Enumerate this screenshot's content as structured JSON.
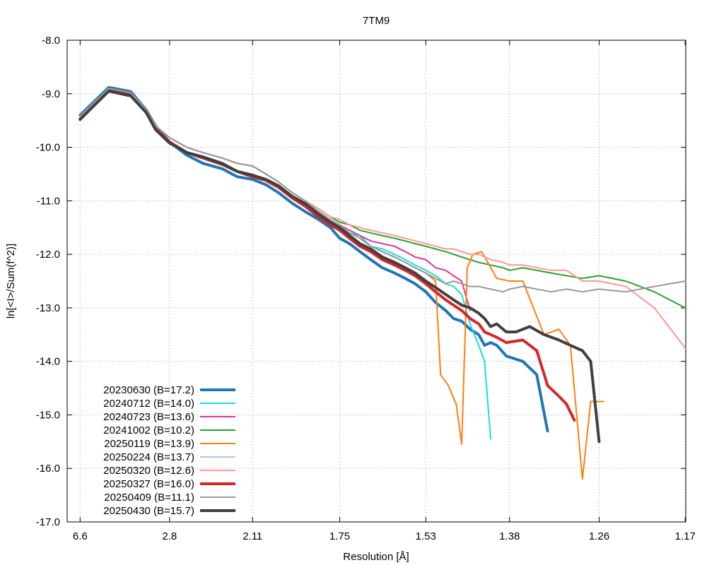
{
  "chart_data": {
    "type": "line",
    "title": "7TM9",
    "xlabel": "Resolution [Å]",
    "ylabel": "ln[<I>/Sum(f^2)]",
    "x_axis": "inverse-square resolution (1/d^2), tick labels show d in Å",
    "xlim_resolution": [
      6.6,
      1.17
    ],
    "ylim": [
      -17.0,
      -8.0
    ],
    "x_ticks": [
      "6.6",
      "2.8",
      "2.11",
      "1.75",
      "1.53",
      "1.38",
      "1.26",
      "1.17"
    ],
    "y_ticks": [
      "-8.0",
      "-9.0",
      "-10.0",
      "-11.0",
      "-12.0",
      "-13.0",
      "-14.0",
      "-15.0",
      "-16.0",
      "-17.0"
    ],
    "grid": true,
    "legend_position": "bottom-left",
    "series": [
      {
        "name": "20230630 (B=17.2)",
        "color": "#1f77b4",
        "width": "thick",
        "x": [
          6.6,
          4.21,
          3.49,
          3.16,
          3.0,
          2.8,
          2.6,
          2.45,
          2.3,
          2.2,
          2.11,
          2.04,
          1.98,
          1.92,
          1.87,
          1.82,
          1.78,
          1.75,
          1.72,
          1.69,
          1.66,
          1.63,
          1.6,
          1.575,
          1.553,
          1.53,
          1.51,
          1.49,
          1.475,
          1.46,
          1.445,
          1.43,
          1.42,
          1.41,
          1.4,
          1.385,
          1.36,
          1.34,
          1.325
        ],
        "y": [
          -9.4,
          -8.88,
          -8.96,
          -9.3,
          -9.6,
          -9.9,
          -10.15,
          -10.3,
          -10.4,
          -10.55,
          -10.6,
          -10.7,
          -10.85,
          -11.05,
          -11.2,
          -11.35,
          -11.5,
          -11.7,
          -11.8,
          -11.95,
          -12.1,
          -12.25,
          -12.35,
          -12.45,
          -12.55,
          -12.7,
          -12.9,
          -13.05,
          -13.2,
          -13.25,
          -13.4,
          -13.5,
          -13.7,
          -13.65,
          -13.7,
          -13.9,
          -14.0,
          -14.25,
          -15.3
        ]
      },
      {
        "name": "20240712 (B=14.0)",
        "color": "#17dfe0",
        "width": "thin",
        "x": [
          6.6,
          4.21,
          3.49,
          3.16,
          3.0,
          2.8,
          2.6,
          2.45,
          2.3,
          2.2,
          2.11,
          2.04,
          1.98,
          1.92,
          1.87,
          1.82,
          1.78,
          1.75,
          1.72,
          1.69,
          1.66,
          1.63,
          1.6,
          1.575,
          1.553,
          1.53,
          1.51,
          1.49,
          1.475,
          1.46,
          1.445,
          1.43,
          1.42,
          1.41
        ],
        "y": [
          -9.42,
          -8.9,
          -8.98,
          -9.3,
          -9.6,
          -9.82,
          -10.0,
          -10.1,
          -10.2,
          -10.3,
          -10.35,
          -10.5,
          -10.65,
          -10.85,
          -11.0,
          -11.2,
          -11.35,
          -11.45,
          -11.6,
          -11.65,
          -11.85,
          -11.9,
          -12.0,
          -12.1,
          -12.2,
          -12.3,
          -12.4,
          -12.55,
          -12.6,
          -12.75,
          -13.3,
          -13.7,
          -14.0,
          -15.45
        ]
      },
      {
        "name": "20240723 (B=13.6)",
        "color": "#e0349a",
        "width": "thin",
        "x": [
          6.6,
          4.21,
          3.49,
          3.16,
          3.0,
          2.8,
          2.6,
          2.45,
          2.3,
          2.2,
          2.11,
          2.04,
          1.98,
          1.92,
          1.87,
          1.82,
          1.78,
          1.75,
          1.72,
          1.69,
          1.66,
          1.63,
          1.6,
          1.575,
          1.553,
          1.53,
          1.51,
          1.49,
          1.475,
          1.46,
          1.445
        ],
        "y": [
          -9.42,
          -8.9,
          -8.98,
          -9.3,
          -9.6,
          -9.82,
          -10.0,
          -10.1,
          -10.2,
          -10.3,
          -10.35,
          -10.5,
          -10.65,
          -10.85,
          -11.0,
          -11.2,
          -11.35,
          -11.45,
          -11.55,
          -11.65,
          -11.75,
          -11.8,
          -11.85,
          -11.95,
          -12.05,
          -12.1,
          -12.25,
          -12.3,
          -12.4,
          -12.5,
          -13.05
        ]
      },
      {
        "name": "20241002 (B=10.2)",
        "color": "#2ca02c",
        "width": "thin",
        "x": [
          6.6,
          4.21,
          3.49,
          3.16,
          3.0,
          2.8,
          2.6,
          2.45,
          2.3,
          2.2,
          2.11,
          2.04,
          1.98,
          1.92,
          1.87,
          1.82,
          1.78,
          1.75,
          1.72,
          1.69,
          1.66,
          1.63,
          1.6,
          1.575,
          1.553,
          1.53,
          1.51,
          1.49,
          1.475,
          1.46,
          1.445,
          1.43,
          1.41,
          1.39,
          1.38,
          1.36,
          1.34,
          1.32,
          1.3,
          1.28,
          1.26,
          1.23,
          1.2,
          1.17
        ],
        "y": [
          -9.42,
          -8.9,
          -8.98,
          -9.3,
          -9.6,
          -9.82,
          -10.0,
          -10.1,
          -10.2,
          -10.3,
          -10.35,
          -10.5,
          -10.65,
          -10.85,
          -11.0,
          -11.15,
          -11.3,
          -11.4,
          -11.45,
          -11.55,
          -11.6,
          -11.65,
          -11.7,
          -11.75,
          -11.8,
          -11.85,
          -11.9,
          -11.95,
          -12.0,
          -12.05,
          -12.1,
          -12.15,
          -12.2,
          -12.25,
          -12.3,
          -12.25,
          -12.3,
          -12.35,
          -12.4,
          -12.45,
          -12.4,
          -12.5,
          -12.7,
          -13.0
        ]
      },
      {
        "name": "20250119 (B=13.9)",
        "color": "#ff7f0e",
        "width": "thin",
        "x": [
          6.6,
          4.21,
          3.49,
          3.16,
          3.0,
          2.8,
          2.6,
          2.45,
          2.3,
          2.2,
          2.11,
          2.04,
          1.98,
          1.92,
          1.87,
          1.82,
          1.78,
          1.75,
          1.72,
          1.69,
          1.66,
          1.63,
          1.6,
          1.575,
          1.553,
          1.53,
          1.51,
          1.5,
          1.485,
          1.47,
          1.46,
          1.45,
          1.44,
          1.425,
          1.4,
          1.38,
          1.36,
          1.33,
          1.31,
          1.295,
          1.28,
          1.27,
          1.255
        ],
        "y": [
          -9.42,
          -8.9,
          -8.98,
          -9.3,
          -9.6,
          -9.82,
          -10.0,
          -10.1,
          -10.2,
          -10.3,
          -10.35,
          -10.5,
          -10.65,
          -10.85,
          -11.0,
          -11.2,
          -11.35,
          -11.45,
          -11.6,
          -11.7,
          -11.85,
          -11.95,
          -12.05,
          -12.15,
          -12.25,
          -12.35,
          -12.5,
          -14.25,
          -14.45,
          -14.8,
          -15.55,
          -12.25,
          -12.0,
          -11.95,
          -12.45,
          -12.5,
          -12.5,
          -13.5,
          -13.4,
          -13.7,
          -16.2,
          -14.75,
          -14.75
        ]
      },
      {
        "name": "20250224 (B=13.7)",
        "color": "#aec7e8",
        "width": "thin",
        "x": [
          6.6,
          4.21,
          3.49,
          3.16,
          3.0,
          2.8,
          2.6,
          2.45,
          2.3,
          2.2,
          2.11,
          2.04,
          1.98,
          1.92,
          1.87,
          1.82,
          1.78,
          1.75,
          1.72,
          1.69,
          1.66,
          1.63,
          1.6,
          1.575,
          1.553,
          1.53,
          1.51
        ],
        "y": [
          -9.42,
          -8.9,
          -8.98,
          -9.3,
          -9.6,
          -9.82,
          -10.0,
          -10.1,
          -10.2,
          -10.3,
          -10.35,
          -10.5,
          -10.65,
          -10.85,
          -11.0,
          -11.2,
          -11.35,
          -11.45,
          -11.6,
          -11.7,
          -11.85,
          -11.95,
          -12.05,
          -12.15,
          -12.25,
          -12.35,
          -12.45
        ]
      },
      {
        "name": "20250320 (B=12.6)",
        "color": "#ff9896",
        "width": "thin",
        "x": [
          6.6,
          4.21,
          3.49,
          3.16,
          3.0,
          2.8,
          2.6,
          2.45,
          2.3,
          2.2,
          2.11,
          2.04,
          1.98,
          1.92,
          1.87,
          1.82,
          1.78,
          1.75,
          1.72,
          1.69,
          1.66,
          1.63,
          1.6,
          1.575,
          1.553,
          1.53,
          1.51,
          1.49,
          1.475,
          1.46,
          1.445,
          1.43,
          1.41,
          1.39,
          1.38,
          1.36,
          1.34,
          1.32,
          1.3,
          1.28,
          1.26,
          1.23,
          1.2,
          1.17
        ],
        "y": [
          -9.42,
          -8.9,
          -8.98,
          -9.3,
          -9.6,
          -9.82,
          -10.0,
          -10.1,
          -10.2,
          -10.3,
          -10.35,
          -10.5,
          -10.65,
          -10.85,
          -11.0,
          -11.15,
          -11.3,
          -11.35,
          -11.45,
          -11.5,
          -11.55,
          -11.6,
          -11.65,
          -11.7,
          -11.75,
          -11.8,
          -11.85,
          -11.9,
          -11.9,
          -11.95,
          -12.0,
          -12.0,
          -12.1,
          -12.15,
          -12.2,
          -12.2,
          -12.25,
          -12.3,
          -12.3,
          -12.5,
          -12.5,
          -12.6,
          -13.0,
          -13.75
        ]
      },
      {
        "name": "20250327 (B=16.0)",
        "color": "#d62728",
        "width": "thick",
        "x": [
          6.6,
          4.21,
          3.49,
          3.16,
          3.0,
          2.8,
          2.6,
          2.45,
          2.3,
          2.2,
          2.11,
          2.04,
          1.98,
          1.92,
          1.87,
          1.82,
          1.78,
          1.75,
          1.72,
          1.69,
          1.66,
          1.63,
          1.6,
          1.575,
          1.553,
          1.53,
          1.51,
          1.49,
          1.475,
          1.46,
          1.445,
          1.43,
          1.42,
          1.41,
          1.4,
          1.385,
          1.36,
          1.34,
          1.325,
          1.31,
          1.3,
          1.29
        ],
        "y": [
          -9.47,
          -8.93,
          -9.02,
          -9.33,
          -9.65,
          -9.9,
          -10.1,
          -10.2,
          -10.32,
          -10.45,
          -10.55,
          -10.62,
          -10.75,
          -10.95,
          -11.1,
          -11.3,
          -11.45,
          -11.55,
          -11.7,
          -11.85,
          -11.95,
          -12.1,
          -12.2,
          -12.3,
          -12.4,
          -12.55,
          -12.7,
          -12.85,
          -12.95,
          -13.05,
          -13.2,
          -13.3,
          -13.45,
          -13.5,
          -13.55,
          -13.65,
          -13.6,
          -13.8,
          -14.45,
          -14.65,
          -14.8,
          -15.1
        ]
      },
      {
        "name": "20250409 (B=11.1)",
        "color": "#999999",
        "width": "thin",
        "x": [
          6.6,
          4.21,
          3.49,
          3.16,
          3.0,
          2.8,
          2.6,
          2.45,
          2.3,
          2.2,
          2.11,
          2.04,
          1.98,
          1.92,
          1.87,
          1.82,
          1.78,
          1.75,
          1.72,
          1.69,
          1.66,
          1.63,
          1.6,
          1.575,
          1.553,
          1.53,
          1.51,
          1.49,
          1.475,
          1.46,
          1.445,
          1.43,
          1.41,
          1.39,
          1.38,
          1.36,
          1.34,
          1.32,
          1.3,
          1.28,
          1.26,
          1.23,
          1.2,
          1.17
        ],
        "y": [
          -9.42,
          -8.9,
          -8.98,
          -9.3,
          -9.6,
          -9.82,
          -10.0,
          -10.1,
          -10.2,
          -10.3,
          -10.35,
          -10.5,
          -10.65,
          -10.85,
          -11.0,
          -11.2,
          -11.35,
          -11.45,
          -11.6,
          -11.7,
          -11.85,
          -11.95,
          -12.05,
          -12.15,
          -12.25,
          -12.35,
          -12.45,
          -12.55,
          -12.5,
          -12.55,
          -12.6,
          -12.6,
          -12.65,
          -12.7,
          -12.65,
          -12.6,
          -12.65,
          -12.7,
          -12.65,
          -12.7,
          -12.65,
          -12.7,
          -12.6,
          -12.5
        ]
      },
      {
        "name": "20250430 (B=15.7)",
        "color": "#404040",
        "width": "thick",
        "x": [
          6.6,
          4.21,
          3.49,
          3.16,
          3.0,
          2.8,
          2.6,
          2.45,
          2.3,
          2.2,
          2.11,
          2.04,
          1.98,
          1.92,
          1.87,
          1.82,
          1.78,
          1.75,
          1.72,
          1.69,
          1.66,
          1.63,
          1.6,
          1.575,
          1.553,
          1.53,
          1.51,
          1.49,
          1.475,
          1.46,
          1.445,
          1.43,
          1.42,
          1.41,
          1.4,
          1.385,
          1.37,
          1.35,
          1.33,
          1.31,
          1.295,
          1.28,
          1.27,
          1.26
        ],
        "y": [
          -9.48,
          -8.95,
          -9.04,
          -9.35,
          -9.67,
          -9.92,
          -10.1,
          -10.18,
          -10.3,
          -10.45,
          -10.52,
          -10.6,
          -10.72,
          -10.92,
          -11.05,
          -11.25,
          -11.4,
          -11.5,
          -11.65,
          -11.8,
          -11.9,
          -12.05,
          -12.15,
          -12.25,
          -12.35,
          -12.5,
          -12.62,
          -12.75,
          -12.85,
          -12.95,
          -13.0,
          -13.1,
          -13.2,
          -13.35,
          -13.3,
          -13.45,
          -13.45,
          -13.35,
          -13.5,
          -13.6,
          -13.7,
          -13.8,
          -14.0,
          -15.5
        ]
      }
    ]
  }
}
